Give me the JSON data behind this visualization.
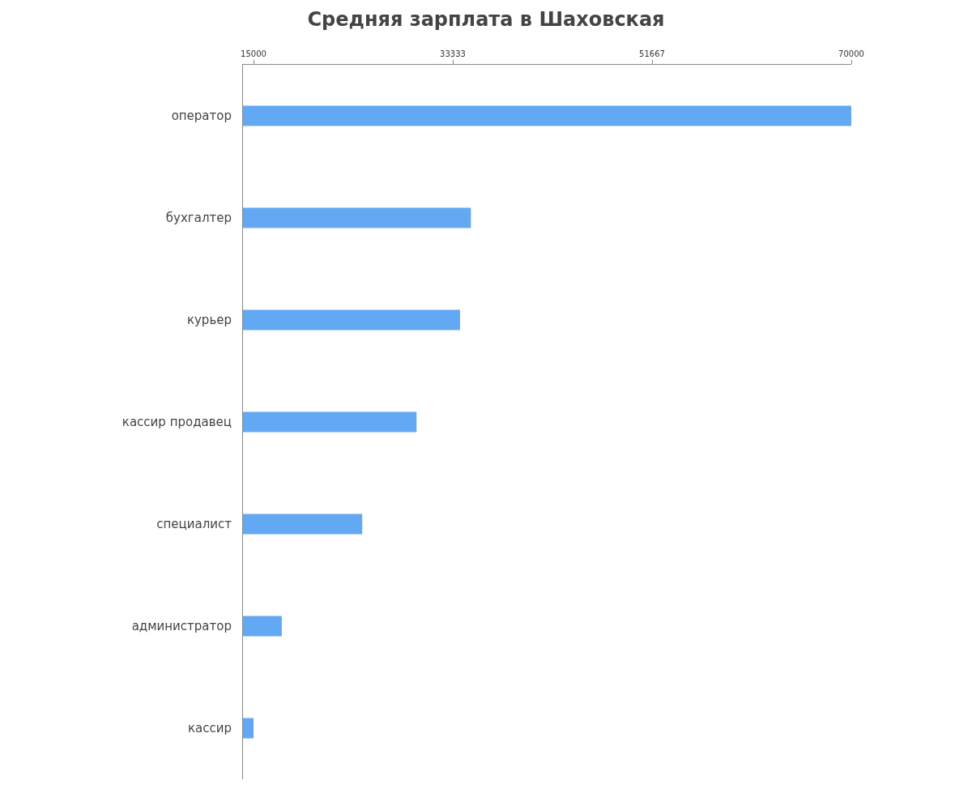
{
  "chart_data": {
    "type": "bar",
    "orientation": "horizontal",
    "title": "Средняя зарплата в Шаховская",
    "categories": [
      "оператор",
      "бухгалтер",
      "курьер",
      "кассир продавец",
      "специалист",
      "администратор",
      "кассир"
    ],
    "values": [
      70000,
      35000,
      34000,
      30000,
      25000,
      17600,
      15000
    ],
    "color": "#62a8f2",
    "xlim": [
      14030,
      70000
    ],
    "xticks": [
      15000,
      33333,
      51667,
      70000
    ]
  }
}
